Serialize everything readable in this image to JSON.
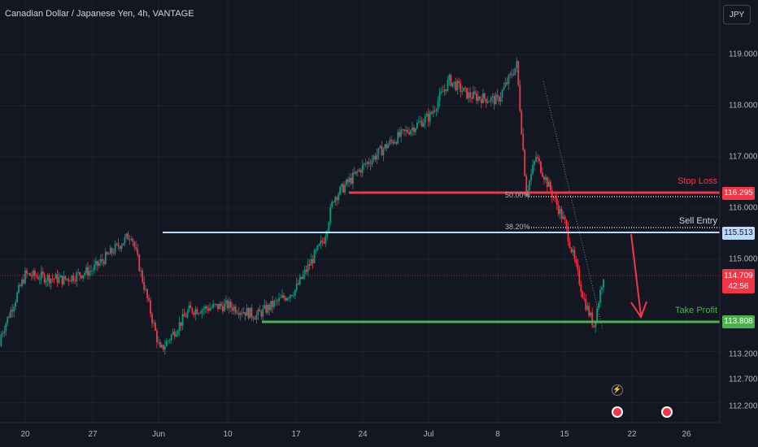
{
  "header": {
    "symbol_title": "Canadian Dollar / Japanese Yen, 4h, VANTAGE",
    "currency_button": "JPY"
  },
  "levels": {
    "stop_loss": {
      "label": "Stop Loss",
      "price": "116.295",
      "color": "#f23645"
    },
    "sell_entry": {
      "label": "Sell Entry",
      "price": "115.513",
      "color": "#bbd9fb"
    },
    "take_profit": {
      "label": "Take Profit",
      "price": "113.808",
      "color": "#4caf50"
    },
    "current": {
      "price": "114.709",
      "countdown": "42:56",
      "color": "#f23645"
    }
  },
  "fib": {
    "f50": "50.00%",
    "f382": "38.20%"
  },
  "colors": {
    "up": "#089981",
    "down": "#f23645",
    "background": "#131722"
  },
  "events": {
    "flash_icon": "lightning-icon",
    "flag_icon_1": "flag-icon",
    "flag_icon_2": "flag-icon"
  },
  "chart_data": {
    "type": "candlestick",
    "title": "Canadian Dollar / Japanese Yen, 4h, VANTAGE",
    "y_ticks": [
      "119.000",
      "118.000",
      "117.000",
      "116.000",
      "115.000",
      "113.200",
      "112.700",
      "112.200"
    ],
    "x_ticks": [
      "20",
      "27",
      "Jun",
      "10",
      "17",
      "24",
      "Jul",
      "8",
      "15",
      "22",
      "26"
    ],
    "ylim": [
      112.0,
      119.4
    ],
    "price_path": [
      {
        "x": "May 17",
        "y": 113.3
      },
      {
        "x": "May 20",
        "y": 114.7
      },
      {
        "x": "May 24",
        "y": 114.6
      },
      {
        "x": "May 27",
        "y": 114.8
      },
      {
        "x": "May 31",
        "y": 115.5
      },
      {
        "x": "Jun 3",
        "y": 113.2
      },
      {
        "x": "Jun 6",
        "y": 114.0
      },
      {
        "x": "Jun 10",
        "y": 114.1
      },
      {
        "x": "Jun 13",
        "y": 113.9
      },
      {
        "x": "Jun 17",
        "y": 114.4
      },
      {
        "x": "Jun 20",
        "y": 115.4
      },
      {
        "x": "Jun 21",
        "y": 116.2
      },
      {
        "x": "Jun 24",
        "y": 116.8
      },
      {
        "x": "Jun 27",
        "y": 117.3
      },
      {
        "x": "Jul 1",
        "y": 117.8
      },
      {
        "x": "Jul 3",
        "y": 118.5
      },
      {
        "x": "Jul 5",
        "y": 118.2
      },
      {
        "x": "Jul 8",
        "y": 118.1
      },
      {
        "x": "Jul 10",
        "y": 118.8
      },
      {
        "x": "Jul 11",
        "y": 116.3
      },
      {
        "x": "Jul 12",
        "y": 117.0
      },
      {
        "x": "Jul 15",
        "y": 115.7
      },
      {
        "x": "Jul 17",
        "y": 114.2
      },
      {
        "x": "Jul 18",
        "y": 113.7
      },
      {
        "x": "Jul 19",
        "y": 114.7
      }
    ]
  }
}
